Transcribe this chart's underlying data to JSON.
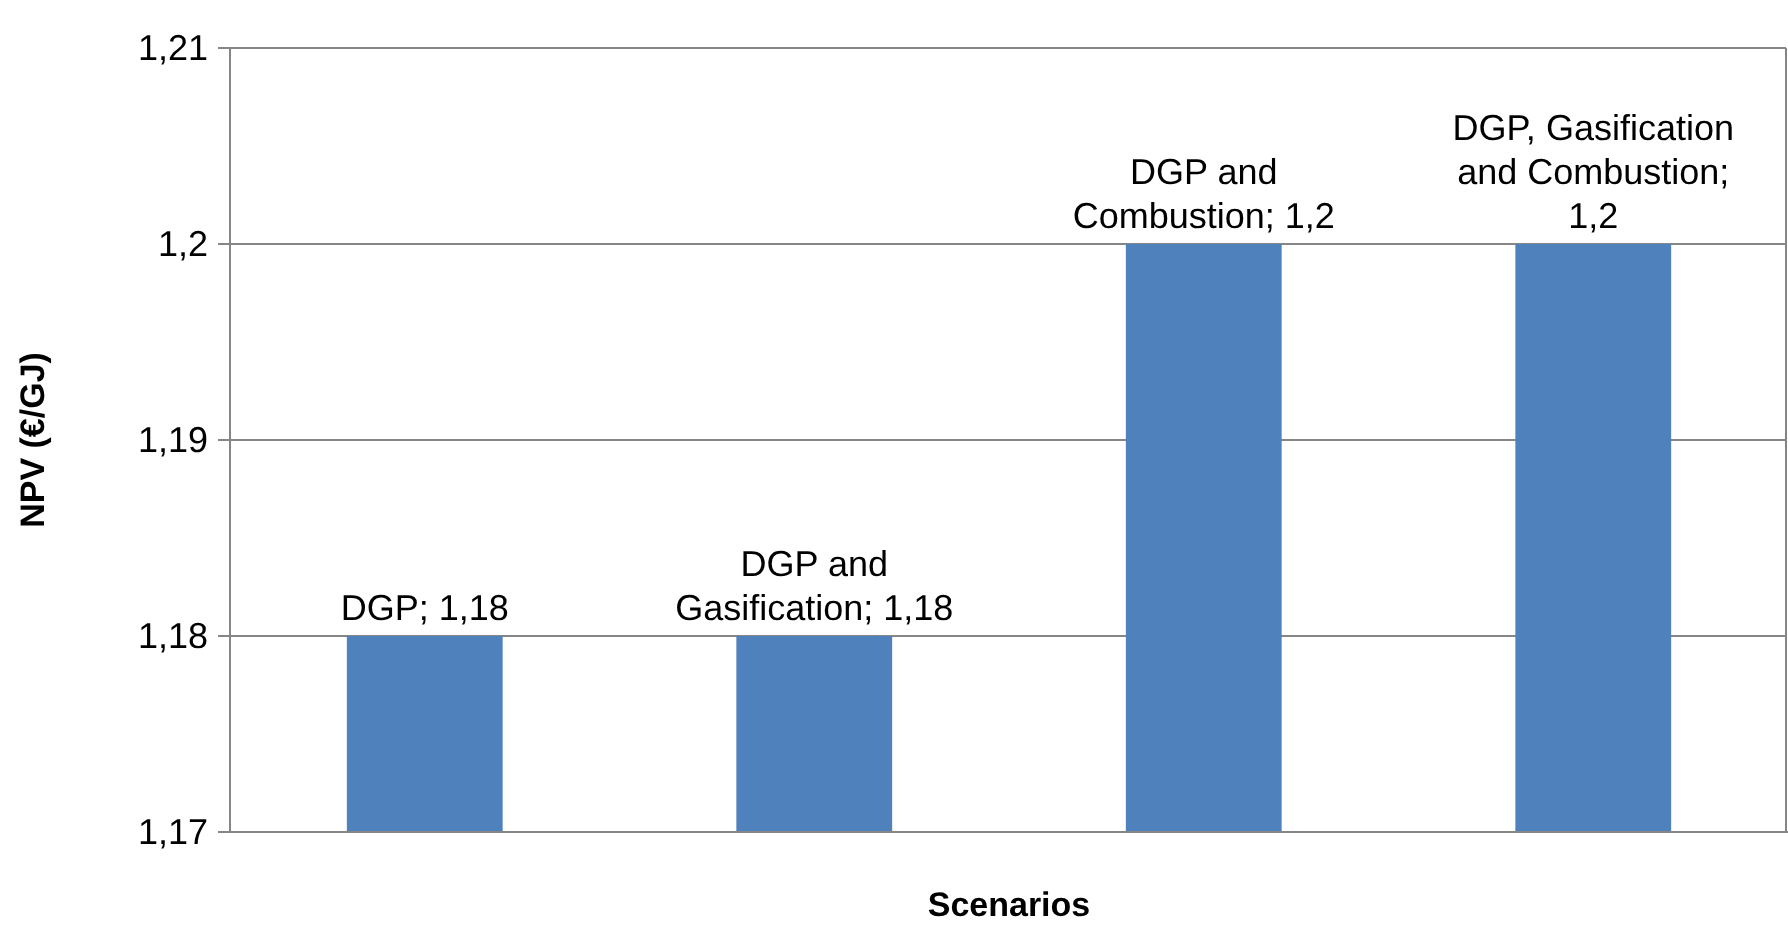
{
  "chart_data": {
    "type": "bar",
    "xlabel": "Scenarios",
    "ylabel": "NPV (€/GJ)",
    "categories": [
      null,
      null,
      null,
      null
    ],
    "values": [
      1.18,
      1.18,
      1.2,
      1.2
    ],
    "value_labels": [
      "DGP; 1,18",
      "DGP and Gasification; 1,18",
      "DGP and Combustion; 1,2",
      "DGP, Gasification and Combustion; 1,2"
    ],
    "color": "#4f81bd",
    "ylim": [
      1.17,
      1.21
    ],
    "yticks": [
      {
        "value": 1.17,
        "label": "1,17"
      },
      {
        "value": 1.18,
        "label": "1,18"
      },
      {
        "value": 1.19,
        "label": "1,19"
      },
      {
        "value": 1.2,
        "label": "1,2"
      },
      {
        "value": 1.21,
        "label": "1,21"
      }
    ],
    "grid": "y",
    "tick_labels": "y"
  }
}
